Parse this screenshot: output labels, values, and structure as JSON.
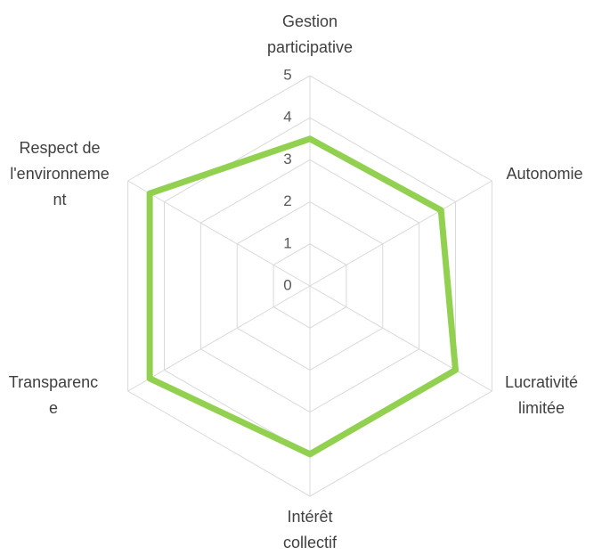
{
  "chart_data": {
    "type": "radar",
    "categories": [
      "Gestion participative",
      "Autonomie",
      "Lucrativité limitée",
      "Intérêt collectif",
      "Transparence",
      "Respect de l'environnement"
    ],
    "values": [
      3.5,
      3.6,
      4.0,
      4.0,
      4.4,
      4.4
    ],
    "color": "#92d050",
    "ylim": [
      0,
      5
    ],
    "yticks": [
      0,
      1,
      2,
      3,
      4,
      5
    ],
    "grid": true
  }
}
